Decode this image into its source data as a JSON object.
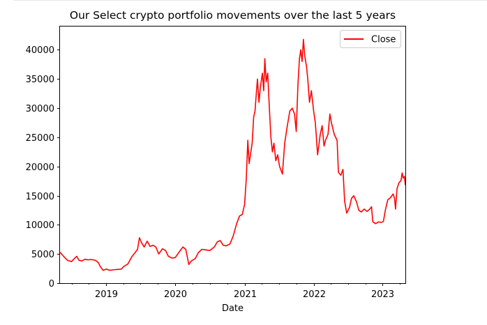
{
  "chart_data": {
    "type": "line",
    "title": "Our Select crypto portfolio movements over the last 5 years",
    "xlabel": "Date",
    "ylabel": "",
    "x_range": [
      "2018-05-01",
      "2023-05-01"
    ],
    "ylim": [
      0,
      44000
    ],
    "yticks": [
      0,
      5000,
      10000,
      15000,
      20000,
      25000,
      30000,
      35000,
      40000
    ],
    "ytick_labels": [
      "0",
      "5000",
      "10000",
      "15000",
      "20000",
      "25000",
      "30000",
      "35000",
      "40000"
    ],
    "xticks": [
      "2019-01-01",
      "2020-01-01",
      "2021-01-01",
      "2022-01-01",
      "2023-01-01"
    ],
    "xtick_labels": [
      "2019",
      "2020",
      "2021",
      "2022",
      "2023"
    ],
    "grid": false,
    "legend_position": "top-right",
    "series": [
      {
        "name": "Close",
        "color": "#ff0000",
        "points": [
          [
            "2018-05-01",
            5300
          ],
          [
            "2018-05-20",
            4600
          ],
          [
            "2018-06-10",
            3900
          ],
          [
            "2018-07-01",
            3700
          ],
          [
            "2018-07-15",
            4200
          ],
          [
            "2018-07-28",
            4600
          ],
          [
            "2018-08-10",
            3900
          ],
          [
            "2018-08-25",
            3800
          ],
          [
            "2018-09-10",
            4100
          ],
          [
            "2018-09-25",
            4000
          ],
          [
            "2018-10-15",
            4050
          ],
          [
            "2018-11-05",
            3900
          ],
          [
            "2018-11-20",
            3500
          ],
          [
            "2018-12-01",
            2800
          ],
          [
            "2018-12-15",
            2200
          ],
          [
            "2019-01-01",
            2400
          ],
          [
            "2019-01-20",
            2200
          ],
          [
            "2019-02-10",
            2300
          ],
          [
            "2019-03-01",
            2350
          ],
          [
            "2019-03-20",
            2400
          ],
          [
            "2019-04-05",
            2900
          ],
          [
            "2019-04-25",
            3300
          ],
          [
            "2019-05-15",
            4500
          ],
          [
            "2019-06-01",
            5200
          ],
          [
            "2019-06-15",
            5800
          ],
          [
            "2019-06-25",
            7800
          ],
          [
            "2019-07-05",
            7000
          ],
          [
            "2019-07-20",
            6200
          ],
          [
            "2019-08-05",
            7200
          ],
          [
            "2019-08-20",
            6300
          ],
          [
            "2019-09-05",
            6500
          ],
          [
            "2019-09-20",
            6200
          ],
          [
            "2019-10-05",
            5000
          ],
          [
            "2019-10-25",
            5900
          ],
          [
            "2019-11-10",
            5600
          ],
          [
            "2019-11-25",
            4600
          ],
          [
            "2019-12-15",
            4300
          ],
          [
            "2020-01-01",
            4400
          ],
          [
            "2020-01-20",
            5300
          ],
          [
            "2020-02-10",
            6200
          ],
          [
            "2020-02-25",
            5800
          ],
          [
            "2020-03-12",
            3200
          ],
          [
            "2020-03-25",
            3800
          ],
          [
            "2020-04-15",
            4200
          ],
          [
            "2020-05-01",
            5200
          ],
          [
            "2020-05-20",
            5800
          ],
          [
            "2020-06-10",
            5700
          ],
          [
            "2020-07-01",
            5600
          ],
          [
            "2020-07-25",
            6200
          ],
          [
            "2020-08-10",
            7100
          ],
          [
            "2020-08-25",
            7300
          ],
          [
            "2020-09-10",
            6500
          ],
          [
            "2020-09-25",
            6400
          ],
          [
            "2020-10-15",
            6700
          ],
          [
            "2020-11-01",
            8000
          ],
          [
            "2020-11-20",
            10200
          ],
          [
            "2020-12-05",
            11500
          ],
          [
            "2020-12-20",
            11800
          ],
          [
            "2021-01-01",
            13500
          ],
          [
            "2021-01-10",
            18000
          ],
          [
            "2021-01-18",
            24500
          ],
          [
            "2021-01-25",
            20500
          ],
          [
            "2021-02-01",
            22000
          ],
          [
            "2021-02-10",
            24000
          ],
          [
            "2021-02-18",
            28500
          ],
          [
            "2021-02-25",
            29500
          ],
          [
            "2021-03-05",
            33000
          ],
          [
            "2021-03-10",
            35000
          ],
          [
            "2021-03-18",
            31000
          ],
          [
            "2021-03-25",
            33500
          ],
          [
            "2021-04-05",
            36000
          ],
          [
            "2021-04-12",
            33000
          ],
          [
            "2021-04-18",
            38500
          ],
          [
            "2021-04-25",
            34500
          ],
          [
            "2021-05-03",
            36000
          ],
          [
            "2021-05-12",
            30000
          ],
          [
            "2021-05-20",
            25000
          ],
          [
            "2021-05-28",
            22500
          ],
          [
            "2021-06-05",
            24000
          ],
          [
            "2021-06-15",
            21000
          ],
          [
            "2021-06-25",
            22000
          ],
          [
            "2021-07-05",
            20000
          ],
          [
            "2021-07-20",
            18700
          ],
          [
            "2021-08-01",
            24000
          ],
          [
            "2021-08-15",
            27000
          ],
          [
            "2021-08-28",
            29500
          ],
          [
            "2021-09-10",
            30000
          ],
          [
            "2021-09-22",
            29000
          ],
          [
            "2021-10-01",
            26000
          ],
          [
            "2021-10-10",
            34000
          ],
          [
            "2021-10-18",
            38500
          ],
          [
            "2021-10-25",
            40000
          ],
          [
            "2021-11-01",
            38000
          ],
          [
            "2021-11-08",
            41800
          ],
          [
            "2021-11-15",
            39000
          ],
          [
            "2021-11-25",
            37000
          ],
          [
            "2021-12-01",
            35000
          ],
          [
            "2021-12-10",
            31000
          ],
          [
            "2021-12-20",
            33000
          ],
          [
            "2022-01-01",
            29500
          ],
          [
            "2022-01-10",
            27500
          ],
          [
            "2022-01-22",
            22000
          ],
          [
            "2022-02-05",
            25500
          ],
          [
            "2022-02-15",
            27000
          ],
          [
            "2022-02-25",
            23500
          ],
          [
            "2022-03-05",
            24500
          ],
          [
            "2022-03-18",
            25500
          ],
          [
            "2022-03-28",
            29000
          ],
          [
            "2022-04-05",
            27500
          ],
          [
            "2022-04-20",
            25500
          ],
          [
            "2022-05-05",
            24500
          ],
          [
            "2022-05-12",
            19000
          ],
          [
            "2022-05-25",
            18500
          ],
          [
            "2022-06-05",
            19500
          ],
          [
            "2022-06-14",
            14000
          ],
          [
            "2022-06-25",
            12000
          ],
          [
            "2022-07-10",
            13000
          ],
          [
            "2022-07-20",
            14500
          ],
          [
            "2022-08-01",
            15000
          ],
          [
            "2022-08-15",
            14000
          ],
          [
            "2022-08-28",
            12500
          ],
          [
            "2022-09-10",
            12200
          ],
          [
            "2022-09-25",
            12700
          ],
          [
            "2022-10-10",
            12300
          ],
          [
            "2022-10-25",
            12700
          ],
          [
            "2022-11-03",
            13100
          ],
          [
            "2022-11-10",
            10500
          ],
          [
            "2022-11-25",
            10200
          ],
          [
            "2022-12-10",
            10500
          ],
          [
            "2022-12-25",
            10400
          ],
          [
            "2023-01-05",
            10600
          ],
          [
            "2023-01-15",
            12500
          ],
          [
            "2023-01-28",
            14300
          ],
          [
            "2023-02-10",
            14600
          ],
          [
            "2023-02-25",
            15300
          ],
          [
            "2023-03-05",
            14500
          ],
          [
            "2023-03-10",
            12700
          ],
          [
            "2023-03-18",
            16200
          ],
          [
            "2023-03-28",
            17200
          ],
          [
            "2023-04-08",
            17600
          ],
          [
            "2023-04-14",
            18900
          ],
          [
            "2023-04-20",
            18000
          ],
          [
            "2023-04-26",
            18300
          ],
          [
            "2023-05-01",
            16800
          ]
        ]
      }
    ]
  }
}
